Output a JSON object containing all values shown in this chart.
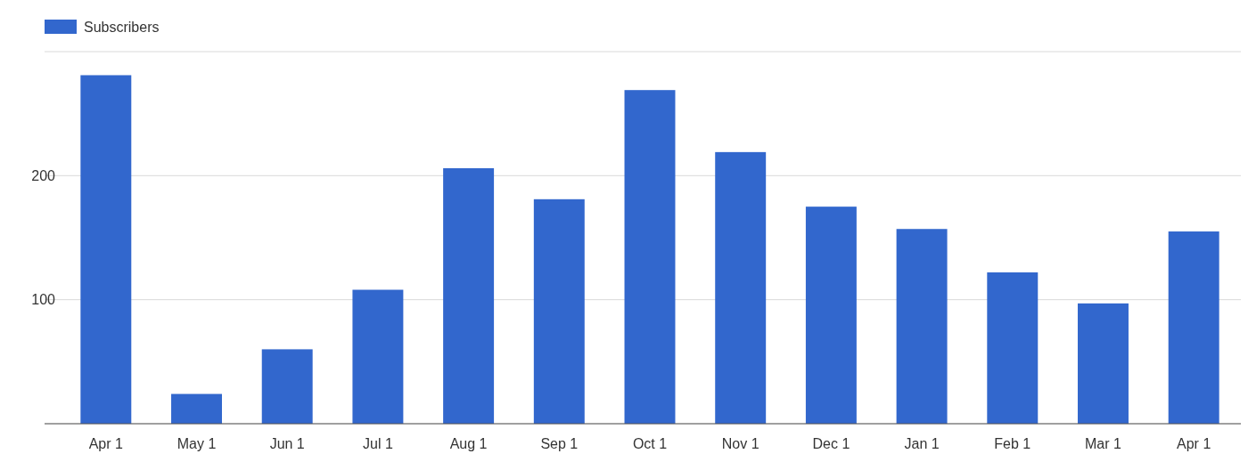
{
  "chart_data": {
    "type": "bar",
    "categories": [
      "Apr 1",
      "May 1",
      "Jun 1",
      "Jul 1",
      "Aug 1",
      "Sep 1",
      "Oct 1",
      "Nov 1",
      "Dec 1",
      "Jan 1",
      "Feb 1",
      "Mar 1",
      "Apr 1"
    ],
    "series": [
      {
        "name": "Subscribers",
        "color": "#3267cd",
        "values": [
          281,
          24,
          60,
          108,
          206,
          181,
          269,
          219,
          175,
          157,
          122,
          97,
          155
        ]
      }
    ],
    "ylim": [
      0,
      300
    ],
    "yticks": [
      {
        "value": 0,
        "label": null
      },
      100,
      200,
      {
        "value": 300,
        "label": null
      }
    ],
    "grid": "y",
    "legend": "top left"
  }
}
